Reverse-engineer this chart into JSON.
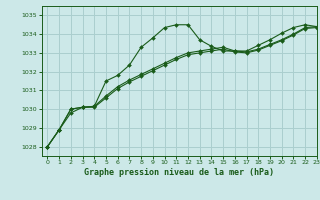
{
  "title": "Graphe pression niveau de la mer (hPa)",
  "bg_color": "#cce8e8",
  "grid_color": "#aacece",
  "line_color": "#1a5c1a",
  "xlim": [
    -0.5,
    23
  ],
  "ylim": [
    1027.5,
    1035.5
  ],
  "yticks": [
    1028,
    1029,
    1030,
    1031,
    1032,
    1033,
    1034,
    1035
  ],
  "xticks": [
    0,
    1,
    2,
    3,
    4,
    5,
    6,
    7,
    8,
    9,
    10,
    11,
    12,
    13,
    14,
    15,
    16,
    17,
    18,
    19,
    20,
    21,
    22,
    23
  ],
  "series1": {
    "x": [
      0,
      1,
      2,
      3,
      4,
      5,
      6,
      7,
      8,
      9,
      10,
      11,
      12,
      13,
      14,
      15,
      16,
      17,
      18,
      19,
      20,
      21,
      22,
      23
    ],
    "y": [
      1028.0,
      1028.9,
      1029.8,
      1030.1,
      1030.15,
      1031.5,
      1031.8,
      1032.35,
      1033.3,
      1033.8,
      1034.35,
      1034.5,
      1034.5,
      1033.7,
      1033.35,
      1033.1,
      1033.1,
      1033.1,
      1033.4,
      1033.7,
      1034.05,
      1034.35,
      1034.5,
      1034.4
    ]
  },
  "series2": {
    "x": [
      0,
      1,
      2,
      3,
      4,
      5,
      6,
      7,
      8,
      9,
      10,
      11,
      12,
      13,
      14,
      15,
      16,
      17,
      18,
      19,
      20,
      21,
      22,
      23
    ],
    "y": [
      1028.0,
      1028.9,
      1030.0,
      1030.1,
      1030.15,
      1030.7,
      1031.2,
      1031.55,
      1031.85,
      1032.15,
      1032.45,
      1032.75,
      1033.0,
      1033.1,
      1033.2,
      1033.3,
      1033.1,
      1033.05,
      1033.2,
      1033.45,
      1033.7,
      1034.0,
      1034.35,
      1034.4
    ]
  },
  "series3": {
    "x": [
      0,
      1,
      2,
      3,
      4,
      5,
      6,
      7,
      8,
      9,
      10,
      11,
      12,
      13,
      14,
      15,
      16,
      17,
      18,
      19,
      20,
      21,
      22,
      23
    ],
    "y": [
      1028.0,
      1028.9,
      1030.0,
      1030.1,
      1030.1,
      1030.6,
      1031.1,
      1031.45,
      1031.75,
      1032.05,
      1032.35,
      1032.65,
      1032.9,
      1033.0,
      1033.1,
      1033.2,
      1033.05,
      1033.0,
      1033.15,
      1033.4,
      1033.65,
      1033.95,
      1034.3,
      1034.35
    ]
  }
}
